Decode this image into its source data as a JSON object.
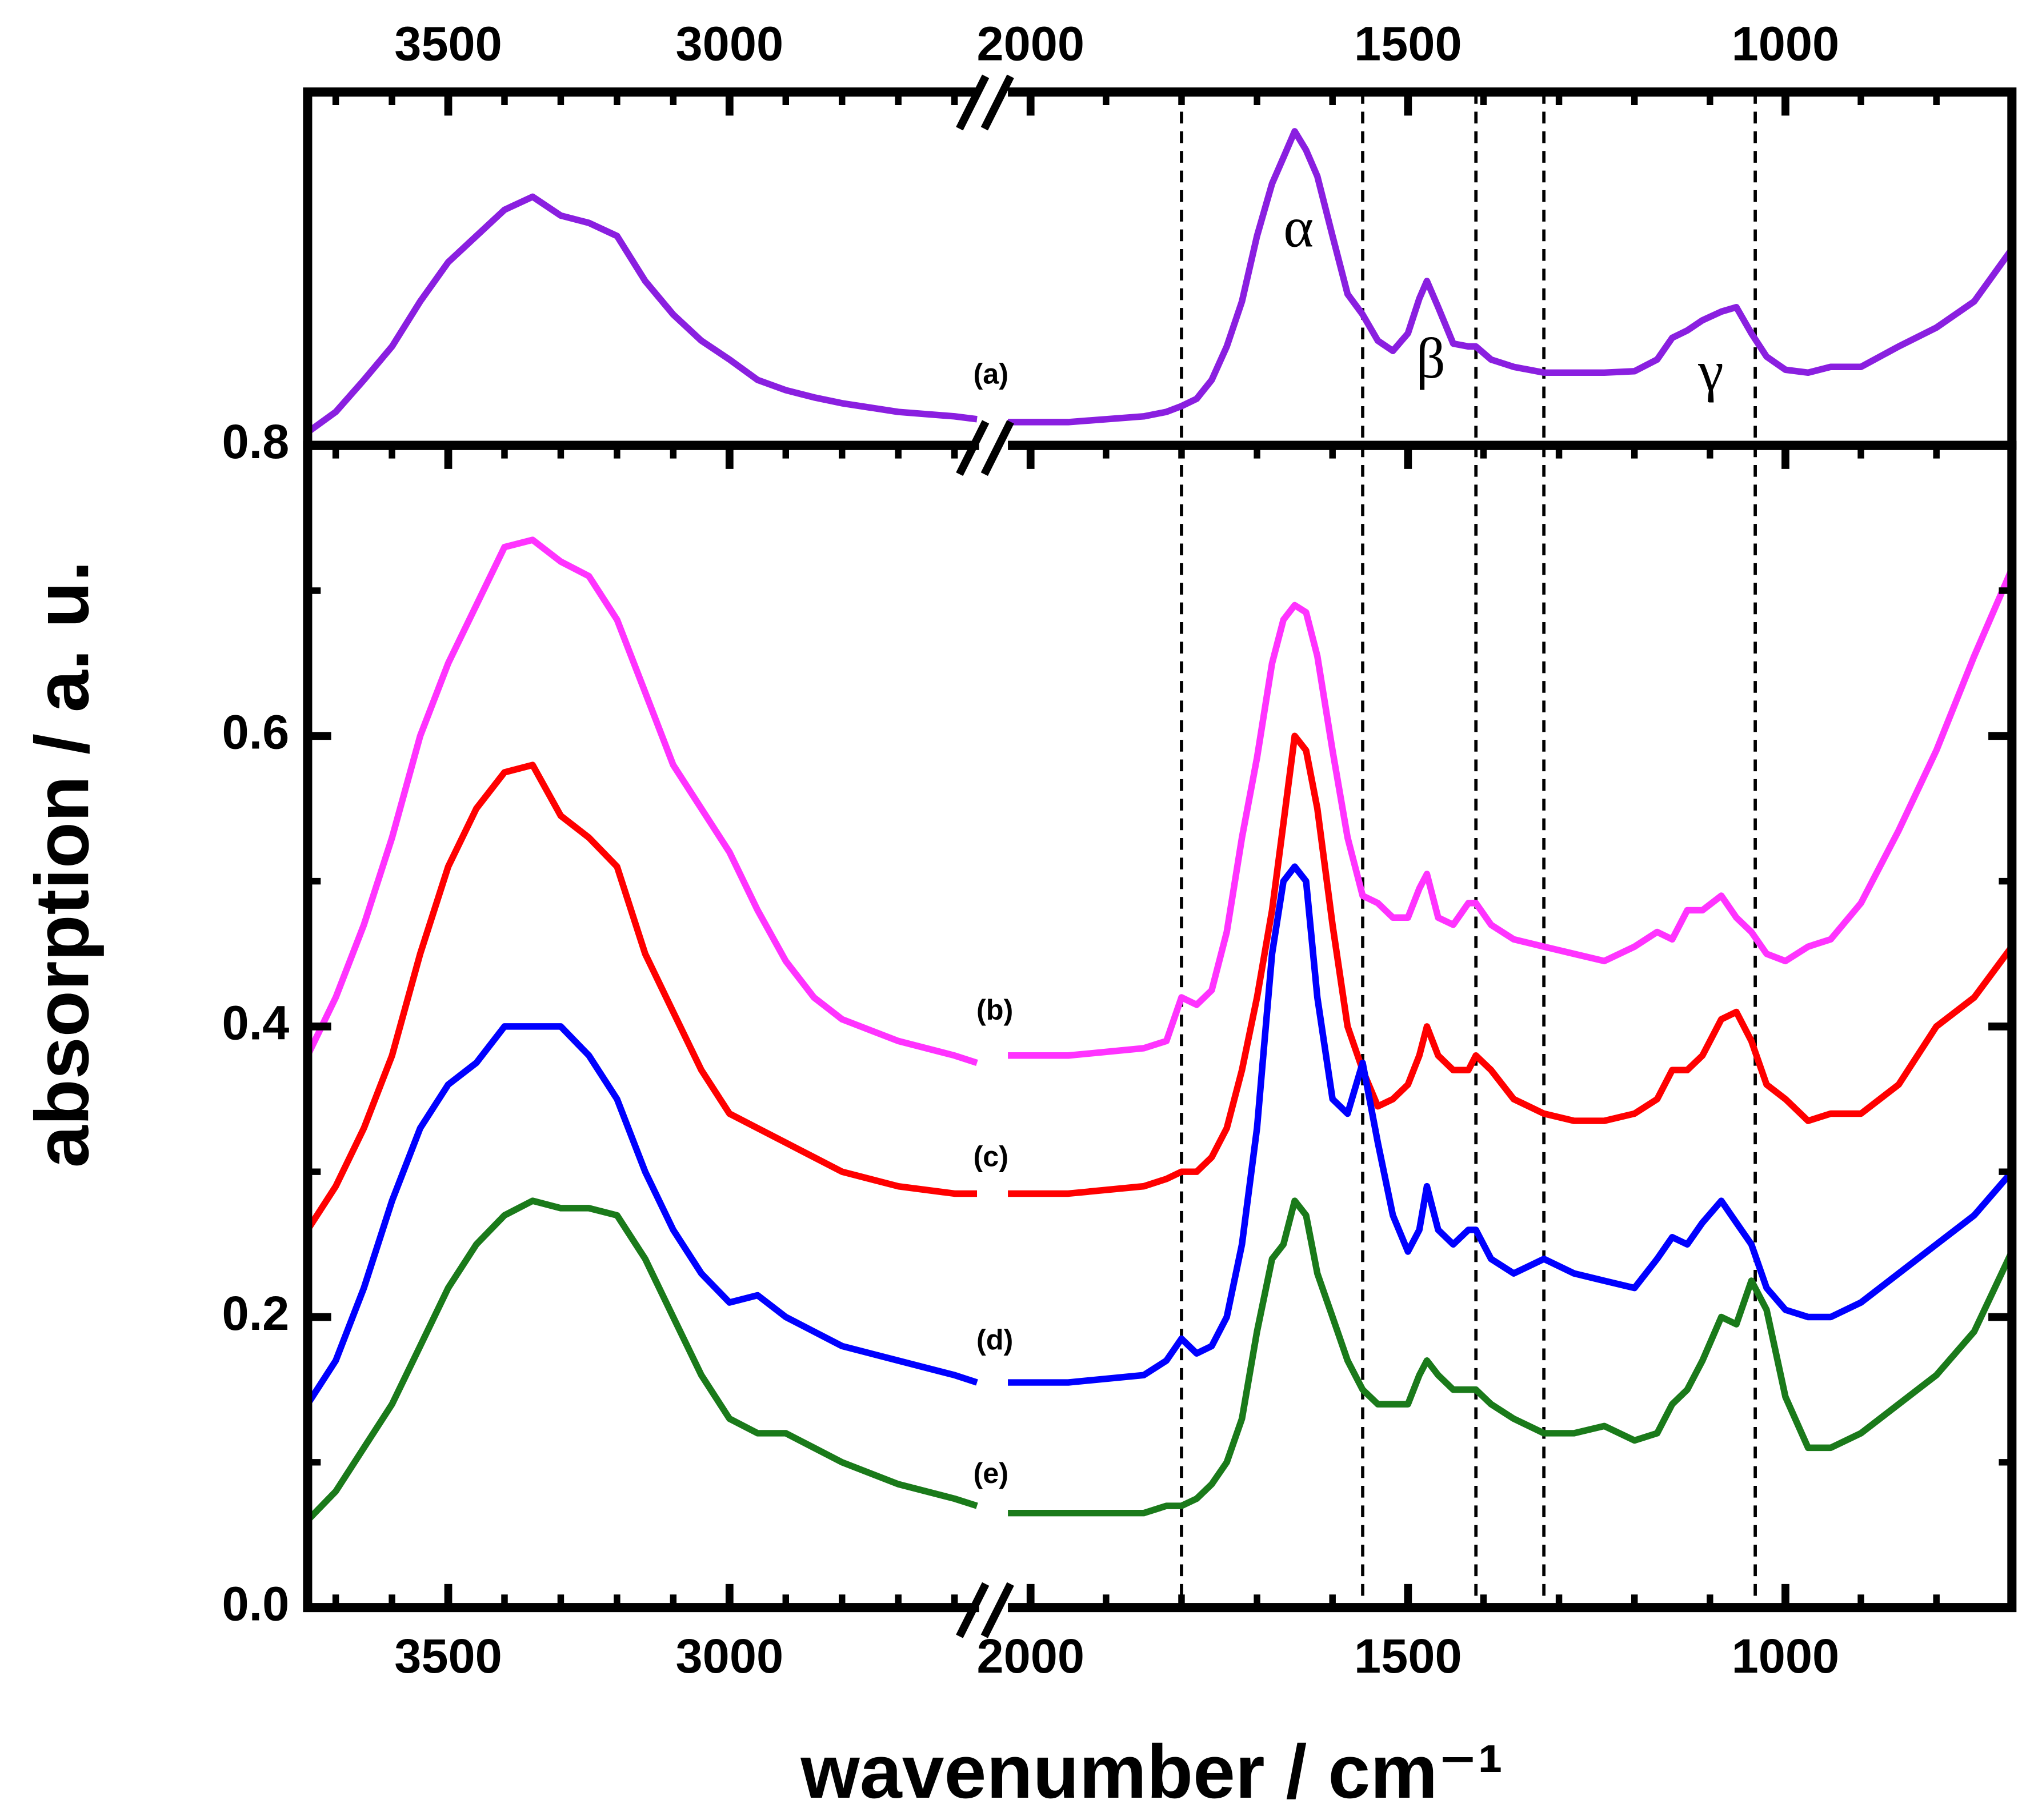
{
  "chart_data": {
    "type": "line",
    "xlabel": "wavenumber / cm⁻¹",
    "ylabel": "absorption / a. u.",
    "xlim": [
      3750,
      700
    ],
    "axis_break": [
      2540,
      2030
    ],
    "xticks": [
      3500,
      3000,
      2000,
      1500,
      1000
    ],
    "xticks_minor": [
      3700,
      3600,
      3400,
      3300,
      3200,
      3100,
      2900,
      2800,
      2700,
      2600,
      1900,
      1800,
      1700,
      1600,
      1400,
      1300,
      1200,
      1100,
      900,
      800
    ],
    "ylim": [
      0,
      0.8
    ],
    "yticks": [
      {
        "value": 0,
        "label": "0.0"
      },
      0.2,
      0.4,
      0.6,
      0.8
    ],
    "yticks_minor": [
      0.1,
      0.3,
      0.5,
      0.7
    ],
    "upper_ylim": [
      0.8,
      1.043
    ],
    "reference_lines": [
      1800,
      1560,
      1410,
      1320,
      1040
    ],
    "annotations": [
      "α",
      "β",
      "γ"
    ],
    "x": [
      3750,
      3700,
      3650,
      3600,
      3550,
      3500,
      3450,
      3400,
      3350,
      3300,
      3250,
      3200,
      3150,
      3100,
      3050,
      3000,
      2950,
      2900,
      2850,
      2800,
      2700,
      2600,
      2560,
      2030,
      1950,
      1850,
      1820,
      1800,
      1780,
      1760,
      1740,
      1720,
      1700,
      1680,
      1665,
      1650,
      1635,
      1620,
      1600,
      1580,
      1560,
      1540,
      1520,
      1500,
      1485,
      1475,
      1460,
      1440,
      1420,
      1410,
      1390,
      1360,
      1320,
      1280,
      1240,
      1200,
      1170,
      1150,
      1130,
      1110,
      1085,
      1065,
      1045,
      1025,
      1000,
      970,
      940,
      900,
      850,
      800,
      750,
      700
    ],
    "series": [
      {
        "name": "(a)",
        "color": "#8a1fe0",
        "panel": "upper",
        "values": [
          0.809,
          0.823,
          0.845,
          0.868,
          0.899,
          0.926,
          0.944,
          0.962,
          0.971,
          0.958,
          0.953,
          0.944,
          0.913,
          0.89,
          0.872,
          0.859,
          0.845,
          0.838,
          0.833,
          0.829,
          0.823,
          0.82,
          0.818,
          0.816,
          0.816,
          0.82,
          0.823,
          0.827,
          0.832,
          0.845,
          0.868,
          0.899,
          0.944,
          0.98,
          0.998,
          1.016,
          1.003,
          0.985,
          0.944,
          0.904,
          0.89,
          0.872,
          0.865,
          0.877,
          0.901,
          0.913,
          0.895,
          0.87,
          0.868,
          0.868,
          0.859,
          0.854,
          0.85,
          0.85,
          0.85,
          0.851,
          0.859,
          0.874,
          0.879,
          0.886,
          0.892,
          0.895,
          0.877,
          0.861,
          0.852,
          0.85,
          0.854,
          0.854,
          0.868,
          0.881,
          0.899,
          0.935
        ]
      },
      {
        "name": "(b)",
        "color": "#ff33ff",
        "values": [
          0.38,
          0.42,
          0.47,
          0.53,
          0.6,
          0.65,
          0.69,
          0.73,
          0.735,
          0.72,
          0.71,
          0.68,
          0.63,
          0.58,
          0.55,
          0.52,
          0.48,
          0.445,
          0.42,
          0.405,
          0.39,
          0.38,
          0.375,
          0.38,
          0.38,
          0.385,
          0.39,
          0.42,
          0.415,
          0.425,
          0.465,
          0.53,
          0.585,
          0.65,
          0.68,
          0.69,
          0.685,
          0.655,
          0.59,
          0.53,
          0.49,
          0.485,
          0.475,
          0.475,
          0.495,
          0.505,
          0.475,
          0.47,
          0.485,
          0.485,
          0.47,
          0.46,
          0.455,
          0.45,
          0.445,
          0.455,
          0.465,
          0.46,
          0.48,
          0.48,
          0.49,
          0.475,
          0.465,
          0.45,
          0.445,
          0.455,
          0.46,
          0.485,
          0.535,
          0.59,
          0.655,
          0.715
        ]
      },
      {
        "name": "(c)",
        "color": "#ff0000",
        "values": [
          0.26,
          0.29,
          0.33,
          0.38,
          0.45,
          0.51,
          0.55,
          0.575,
          0.58,
          0.545,
          0.53,
          0.51,
          0.45,
          0.41,
          0.37,
          0.34,
          0.33,
          0.32,
          0.31,
          0.3,
          0.29,
          0.285,
          0.285,
          0.285,
          0.285,
          0.29,
          0.295,
          0.3,
          0.3,
          0.31,
          0.33,
          0.37,
          0.42,
          0.48,
          0.54,
          0.6,
          0.59,
          0.55,
          0.47,
          0.4,
          0.37,
          0.345,
          0.35,
          0.36,
          0.38,
          0.4,
          0.38,
          0.37,
          0.37,
          0.38,
          0.37,
          0.35,
          0.34,
          0.335,
          0.335,
          0.34,
          0.35,
          0.37,
          0.37,
          0.38,
          0.405,
          0.41,
          0.39,
          0.36,
          0.35,
          0.335,
          0.34,
          0.34,
          0.36,
          0.4,
          0.42,
          0.455
        ]
      },
      {
        "name": "(d)",
        "color": "#0000ff",
        "values": [
          0.14,
          0.17,
          0.22,
          0.28,
          0.33,
          0.36,
          0.375,
          0.4,
          0.4,
          0.4,
          0.38,
          0.35,
          0.3,
          0.26,
          0.23,
          0.21,
          0.215,
          0.2,
          0.19,
          0.18,
          0.17,
          0.16,
          0.155,
          0.155,
          0.155,
          0.16,
          0.17,
          0.185,
          0.175,
          0.18,
          0.2,
          0.25,
          0.33,
          0.45,
          0.5,
          0.51,
          0.5,
          0.42,
          0.35,
          0.34,
          0.375,
          0.32,
          0.27,
          0.245,
          0.26,
          0.29,
          0.26,
          0.25,
          0.26,
          0.26,
          0.24,
          0.23,
          0.24,
          0.23,
          0.225,
          0.22,
          0.24,
          0.255,
          0.25,
          0.265,
          0.28,
          0.265,
          0.25,
          0.22,
          0.205,
          0.2,
          0.2,
          0.21,
          0.23,
          0.25,
          0.27,
          0.3
        ]
      },
      {
        "name": "(e)",
        "color": "#1a7a1a",
        "values": [
          0.06,
          0.08,
          0.11,
          0.14,
          0.18,
          0.22,
          0.25,
          0.27,
          0.28,
          0.275,
          0.275,
          0.27,
          0.24,
          0.2,
          0.16,
          0.13,
          0.12,
          0.12,
          0.11,
          0.1,
          0.085,
          0.075,
          0.07,
          0.065,
          0.065,
          0.065,
          0.07,
          0.07,
          0.075,
          0.085,
          0.1,
          0.13,
          0.19,
          0.24,
          0.25,
          0.28,
          0.27,
          0.23,
          0.2,
          0.17,
          0.15,
          0.14,
          0.14,
          0.14,
          0.16,
          0.17,
          0.16,
          0.15,
          0.15,
          0.15,
          0.14,
          0.13,
          0.12,
          0.12,
          0.125,
          0.115,
          0.12,
          0.14,
          0.15,
          0.17,
          0.2,
          0.195,
          0.225,
          0.205,
          0.145,
          0.11,
          0.11,
          0.12,
          0.14,
          0.16,
          0.19,
          0.245
        ]
      }
    ]
  }
}
